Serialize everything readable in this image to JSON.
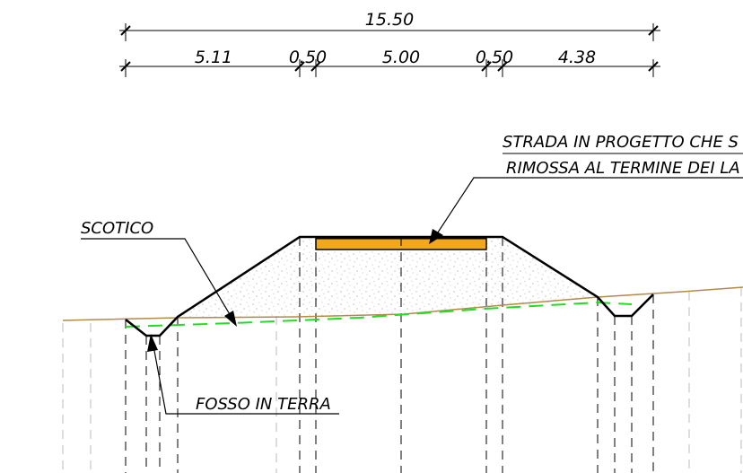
{
  "dimensions": {
    "total": "15.50",
    "segments": [
      "5.11",
      "0.50",
      "5.00",
      "0.50",
      "4.38"
    ]
  },
  "labels": {
    "road_line1": "STRADA IN PROGETTO CHE S",
    "road_line2": "RIMOSSA AL TERMINE DEI LA",
    "topsoil": "SCOTICO",
    "ditch": "FOSSO IN TERRA"
  },
  "colors": {
    "ground_line": "#b38a4a",
    "topsoil_line": "#22dd22",
    "pavement": "#f2a81d",
    "fill_hatch": "#999999",
    "construction": "#000000"
  }
}
